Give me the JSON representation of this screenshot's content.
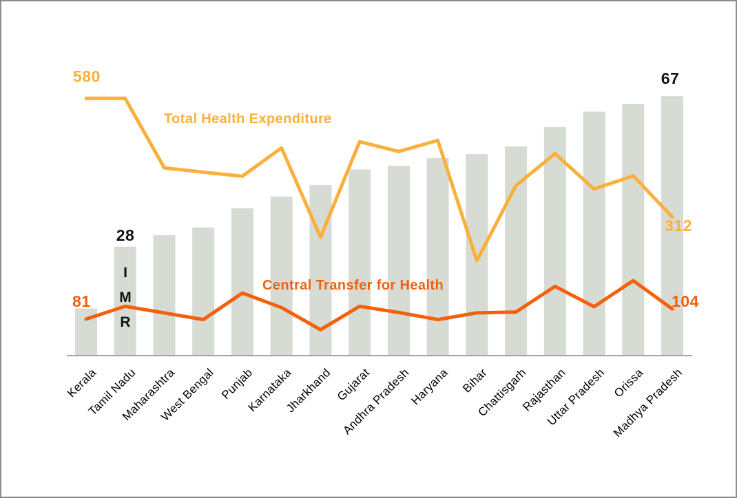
{
  "figure": {
    "background": "#ffffff",
    "border_color": "#8C8C8C"
  },
  "colors": {
    "bar": "#D6DBD3",
    "expenditure_line": "#FBB03C",
    "transfer_line": "#F4600C",
    "axis": "#A3A3A3",
    "number_black": "#111111"
  },
  "chart_data": {
    "type": "bar",
    "subtype": "combo-bar-with-two-lines",
    "title": "",
    "categories": [
      "Kerala",
      "Tamil Nadu",
      "Maharashtra",
      "West Bengal",
      "Punjab",
      "Karnataka",
      "Jharkhand",
      "Gujarat",
      "Andhra Pradesh",
      "Haryana",
      "Bihar",
      "Chattisgarh",
      "Rajasthan",
      "Uttar Pradesh",
      "Orissa",
      "Madhya Pradesh"
    ],
    "bar_series": {
      "name": "IMR",
      "color": "#D6DBD3",
      "values": [
        12,
        28,
        31,
        33,
        38,
        41,
        44,
        48,
        49,
        51,
        52,
        54,
        59,
        63,
        65,
        67
      ],
      "axis_min": 0,
      "axis_max": 70
    },
    "line_series": [
      {
        "name": "Total Health Expenditure",
        "color": "#FBB03C",
        "values": [
          580,
          580,
          423,
          413,
          404,
          468,
          266,
          482,
          460,
          485,
          213,
          383,
          455,
          375,
          405,
          312
        ]
      },
      {
        "name": "Central Transfer for Health",
        "color": "#F4600C",
        "values": [
          81,
          110,
          95,
          80,
          140,
          107,
          57,
          110,
          96,
          80,
          95,
          97,
          155,
          109,
          168,
          104
        ]
      }
    ],
    "line_axis": {
      "min": 0,
      "max": 650
    },
    "grid": false,
    "legend": "inline-text-labels",
    "annotations": {
      "expenditure_first": "580",
      "expenditure_last": "312",
      "transfer_first": "81",
      "transfer_last": "104",
      "imr_tamil_nadu": "28",
      "imr_madhya_pradesh": "67",
      "bar_series_label": "IMR"
    },
    "labels": {
      "expenditure_series": "Total Health Expenditure",
      "transfer_series": "Central Transfer for Health"
    }
  }
}
